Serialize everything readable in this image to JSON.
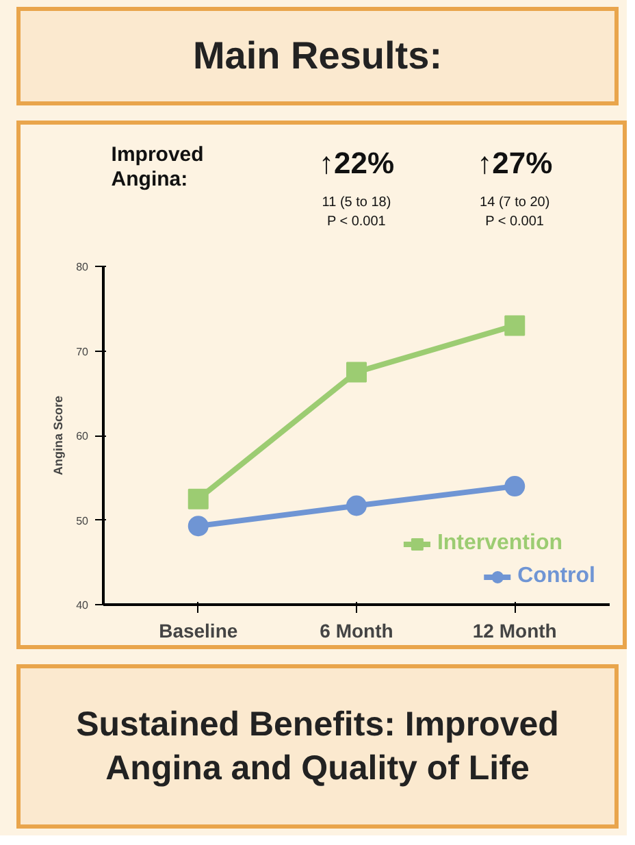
{
  "chart_data": {
    "type": "line",
    "title": "Main Results:",
    "subtitle": "Sustained Benefits: Improved Angina and Quality of Life",
    "ylabel": "Angina Score",
    "annotations": [
      "Improved Angina:",
      "↑22%",
      "11 (5 to 18)",
      "P < 0.001",
      "↑27%",
      "14 (7 to 20)",
      "P < 0.001"
    ],
    "categories": [
      "Baseline",
      "6 Month",
      "12 Month"
    ],
    "series": [
      {
        "name": "Intervention",
        "color": "#9ccc72",
        "marker": "square",
        "values": [
          52.5,
          67.5,
          73
        ]
      },
      {
        "name": "Control",
        "color": "#6f95d4",
        "marker": "circle",
        "values": [
          49.3,
          51.7,
          54
        ]
      }
    ],
    "ylim": [
      40,
      80
    ],
    "yticks": [
      40,
      50,
      60,
      70,
      80
    ],
    "grid": false,
    "legend": "bottom right",
    "line_style": "solid"
  }
}
